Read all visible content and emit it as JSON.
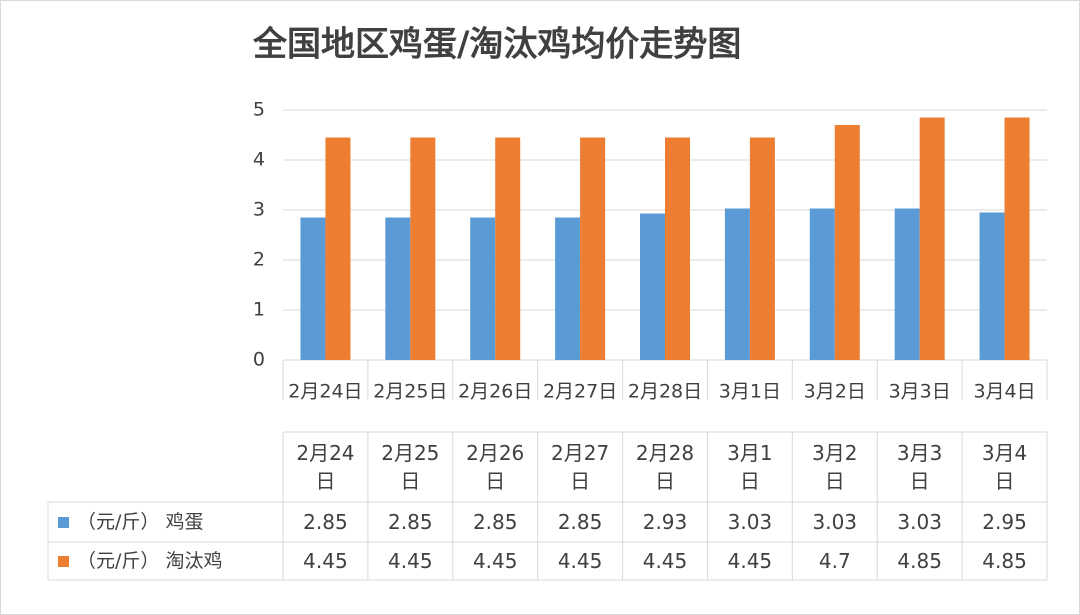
{
  "chart_data": {
    "type": "bar",
    "title": "全国地区鸡蛋/淘汰鸡均价走势图",
    "categories": [
      "2月24日",
      "2月25日",
      "2月26日",
      "2月27日",
      "2月28日",
      "3月1日",
      "3月2日",
      "3月3日",
      "3月4日"
    ],
    "series": [
      {
        "name": "（元/斤） 鸡蛋",
        "color": "#5b9bd5",
        "values": [
          2.85,
          2.85,
          2.85,
          2.85,
          2.93,
          3.03,
          3.03,
          3.03,
          2.95
        ]
      },
      {
        "name": "（元/斤） 淘汰鸡",
        "color": "#ed7d31",
        "values": [
          4.45,
          4.45,
          4.45,
          4.45,
          4.45,
          4.45,
          4.7,
          4.85,
          4.85
        ]
      }
    ],
    "ylim": [
      0,
      5
    ],
    "yticks": [
      0,
      1,
      2,
      3,
      4,
      5
    ],
    "grid": true
  }
}
